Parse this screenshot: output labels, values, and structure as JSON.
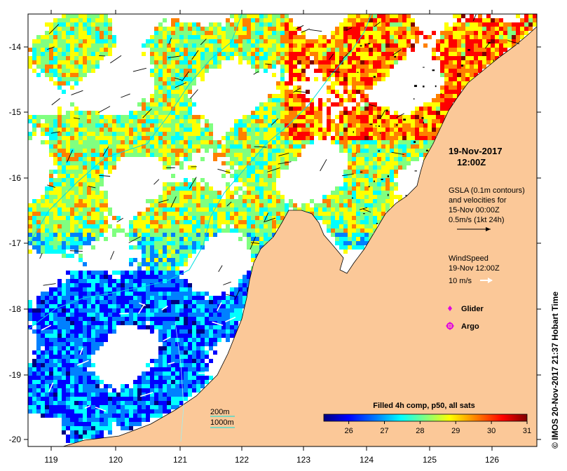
{
  "map": {
    "axes": {
      "x_ticks": [
        "119",
        "120",
        "121",
        "122",
        "123",
        "124",
        "125",
        "126"
      ],
      "y_ticks": [
        "-14",
        "-15",
        "-16",
        "-17",
        "-18",
        "-19",
        "-20"
      ],
      "xlim": [
        118.55,
        126.7
      ],
      "ylim": [
        -20.08,
        -13.55
      ]
    },
    "annotations": {
      "date_line1": "19-Nov-2017",
      "date_line2": "12:00Z",
      "gsla_line1": "GSLA (0.1m contours)",
      "gsla_line2": "and velocities for",
      "gsla_line3": "15-Nov 00:00Z",
      "gsla_line4": "0.5m/s (1kt 24h)",
      "wind_line1": "WindSpeed",
      "wind_line2": "19-Nov 12:00Z",
      "wind_line3": "10 m/s",
      "glider_label": "Glider",
      "argo_label": "Argo",
      "isobath_200": "200m",
      "isobath_1000": "1000m",
      "credit": "© IMOS 20-Nov-2017 21:37 Hobart Time"
    },
    "colorbar": {
      "title": "Filled 4h comp, p50, all sats",
      "ticks": [
        "26",
        "27",
        "28",
        "29",
        "30",
        "31"
      ],
      "range": [
        25.3,
        31
      ],
      "colors": [
        "#00007f",
        "#0000ff",
        "#0080ff",
        "#00ffff",
        "#80ff80",
        "#ffff00",
        "#ff8000",
        "#ff0000",
        "#7f0000"
      ]
    },
    "colors": {
      "land": "#fbc898",
      "ocean_bg": "#ffffff",
      "isobath": "#00e0e0",
      "marker": "#e000e0"
    }
  }
}
